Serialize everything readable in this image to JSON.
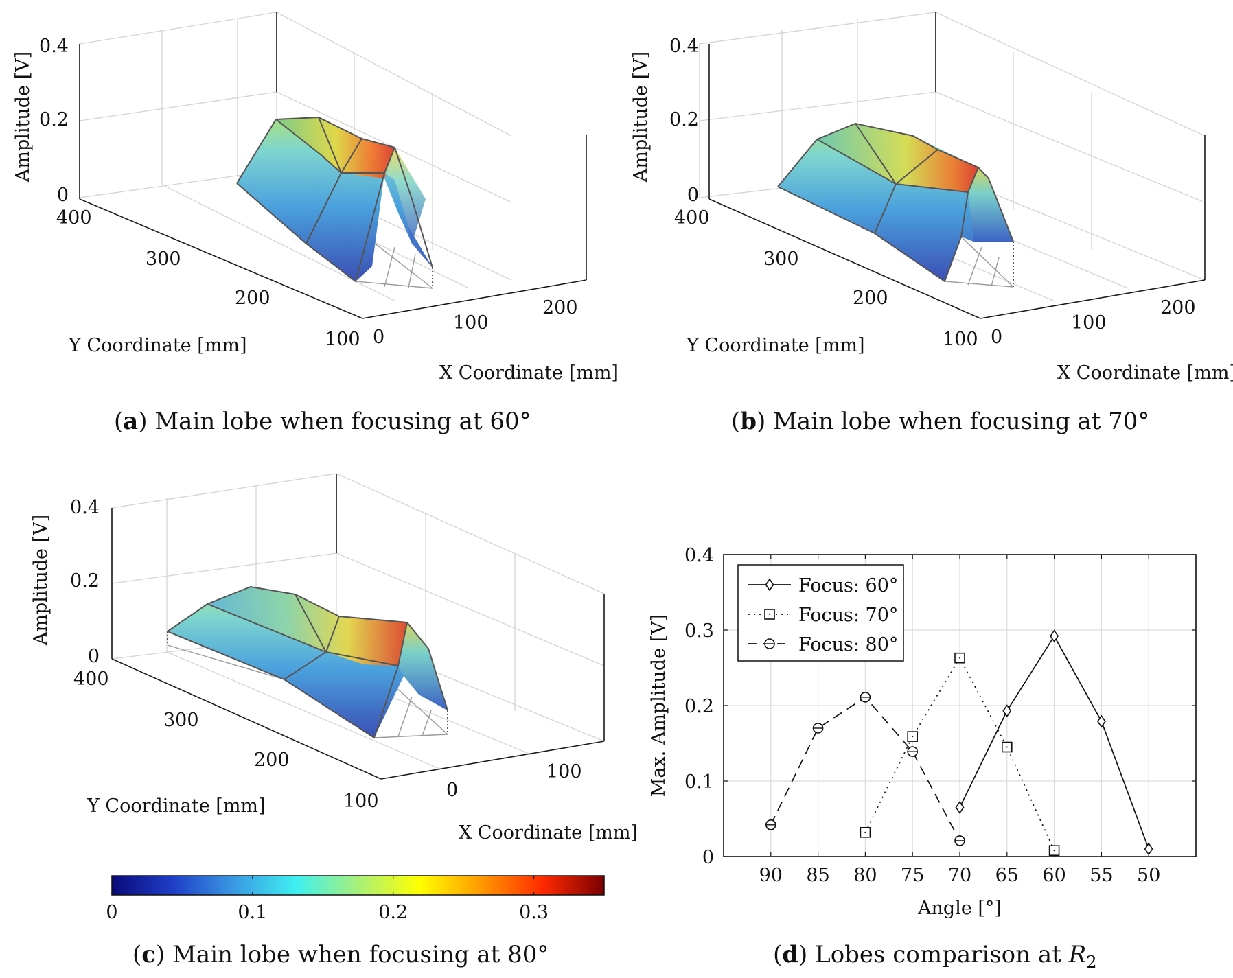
{
  "figure": {
    "panels": [
      {
        "id": "a",
        "caption_label": "a",
        "caption_text": ") Main lobe when focusing at 60°",
        "zlabel": "Amplitude [V]",
        "ylabel": "Y Coordinate [mm]",
        "xlabel": "X Coordinate [mm]",
        "z_ticks": [
          "0",
          "0.2",
          "0.4"
        ],
        "y_ticks": [
          "400",
          "300",
          "200",
          "100"
        ],
        "x_ticks": [
          "0",
          "100",
          "200"
        ]
      },
      {
        "id": "b",
        "caption_label": "b",
        "caption_text": ") Main lobe when focusing at 70°",
        "zlabel": "Amplitude [V]",
        "ylabel": "Y Coordinate [mm]",
        "xlabel": "X Coordinate [mm]",
        "z_ticks": [
          "0",
          "0.2",
          "0.4"
        ],
        "y_ticks": [
          "400",
          "300",
          "200",
          "100"
        ],
        "x_ticks": [
          "0",
          "100",
          "200"
        ]
      },
      {
        "id": "c",
        "caption_label": "c",
        "caption_text": ") Main lobe when focusing at 80°",
        "zlabel": "Amplitude [V]",
        "ylabel": "Y Coordinate [mm]",
        "xlabel": "X Coordinate [mm]",
        "z_ticks": [
          "0",
          "0.2",
          "0.4"
        ],
        "y_ticks": [
          "400",
          "300",
          "200",
          "100"
        ],
        "x_ticks": [
          "0",
          "100"
        ]
      }
    ],
    "colorbar": {
      "ticks": [
        "0",
        "0.1",
        "0.2",
        "0.3"
      ],
      "tick_values": [
        0,
        0.1,
        0.2,
        0.3
      ],
      "range": [
        0,
        0.35
      ],
      "colors": [
        "#0a0a7a",
        "#1f3fc8",
        "#3a9be3",
        "#3ff0f0",
        "#a8f07a",
        "#ffff00",
        "#ff9a00",
        "#ff2a00",
        "#7a0000"
      ]
    },
    "panel_d": {
      "caption_label": "d",
      "caption_text": ") Lobes comparison at ",
      "caption_math": "R",
      "caption_sub": "2"
    }
  },
  "chart_data": [
    {
      "type": "surface3d",
      "title": "Main lobe when focusing at 60°",
      "xlabel": "X Coordinate [mm]",
      "ylabel": "Y Coordinate [mm]",
      "zlabel": "Amplitude [V]",
      "zlim": [
        0,
        0.4
      ],
      "peak_amplitude": 0.29,
      "colorbar_range": [
        0,
        0.35
      ]
    },
    {
      "type": "surface3d",
      "title": "Main lobe when focusing at 70°",
      "xlabel": "X Coordinate [mm]",
      "ylabel": "Y Coordinate [mm]",
      "zlabel": "Amplitude [V]",
      "zlim": [
        0,
        0.4
      ],
      "peak_amplitude": 0.26,
      "colorbar_range": [
        0,
        0.35
      ]
    },
    {
      "type": "surface3d",
      "title": "Main lobe when focusing at 80°",
      "xlabel": "X Coordinate [mm]",
      "ylabel": "Y Coordinate [mm]",
      "zlabel": "Amplitude [V]",
      "zlim": [
        0,
        0.4
      ],
      "peak_amplitude": 0.21,
      "colorbar_range": [
        0,
        0.35
      ]
    },
    {
      "type": "line",
      "title": "Lobes comparison at R2",
      "xlabel": "Angle [°]",
      "ylabel": "Max. Amplitude [V]",
      "x_ticks": [
        90,
        85,
        80,
        75,
        70,
        65,
        60,
        55,
        50
      ],
      "xlim": [
        95,
        45
      ],
      "y_ticks": [
        "0",
        "0.1",
        "0.2",
        "0.3",
        "0.4"
      ],
      "ylim": [
        0,
        0.4
      ],
      "legend_position": "top-left",
      "series": [
        {
          "name": "Focus: 60°",
          "style": "solid",
          "marker": "diamond",
          "x": [
            70,
            65,
            60,
            55,
            50
          ],
          "y": [
            0.065,
            0.193,
            0.292,
            0.179,
            0.01
          ]
        },
        {
          "name": "Focus: 70°",
          "style": "dotted",
          "marker": "square",
          "x": [
            80,
            75,
            70,
            65,
            60
          ],
          "y": [
            0.032,
            0.159,
            0.263,
            0.145,
            0.008
          ]
        },
        {
          "name": "Focus: 80°",
          "style": "dashed",
          "marker": "circle",
          "x": [
            90,
            85,
            80,
            75,
            70
          ],
          "y": [
            0.042,
            0.17,
            0.211,
            0.139,
            0.021
          ]
        }
      ]
    }
  ]
}
